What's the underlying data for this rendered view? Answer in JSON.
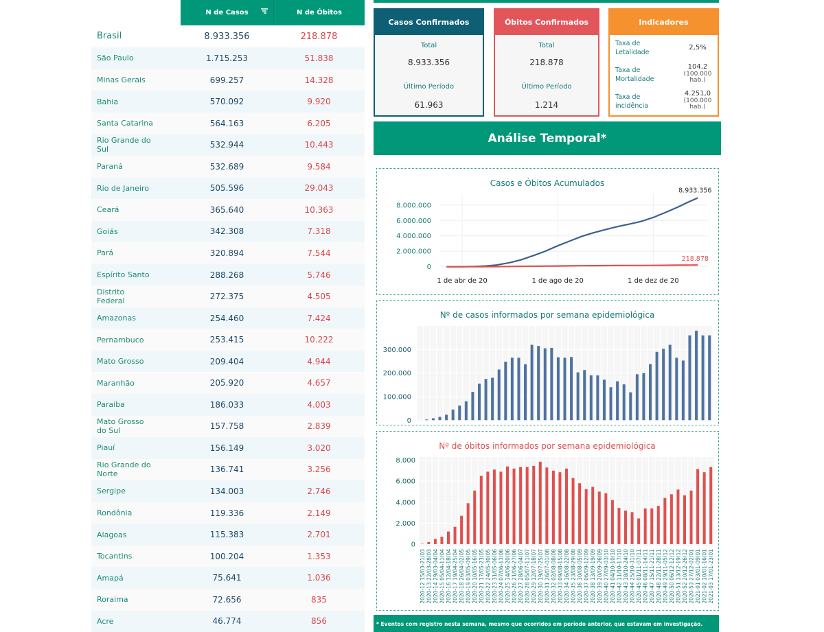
{
  "table": {
    "header": [
      "N de Casos",
      "N de Óbitos"
    ],
    "rows": [
      [
        "Brasil",
        "8.933.356",
        "218.878"
      ],
      [
        "São Paulo",
        "1.715.253",
        "51.838"
      ],
      [
        "Minas Gerais",
        "699.257",
        "14.328"
      ],
      [
        "Bahia",
        "570.092",
        "9.920"
      ],
      [
        "Santa Catarina",
        "564.163",
        "6.205"
      ],
      [
        "Rio Grande do Sul",
        "532.944",
        "10.443"
      ],
      [
        "Paraná",
        "532.689",
        "9.584"
      ],
      [
        "Rio de Janeiro",
        "505.596",
        "29.043"
      ],
      [
        "Ceará",
        "365.640",
        "10.363"
      ],
      [
        "Goiás",
        "342.308",
        "7.318"
      ],
      [
        "Pará",
        "320.894",
        "7.544"
      ],
      [
        "Espírito Santo",
        "288.268",
        "5.746"
      ],
      [
        "Distrito Federal",
        "272.375",
        "4.505"
      ],
      [
        "Amazonas",
        "254.460",
        "7.424"
      ],
      [
        "Pernambuco",
        "253.415",
        "10.222"
      ],
      [
        "Mato Grosso",
        "209.404",
        "4.944"
      ],
      [
        "Maranhão",
        "205.920",
        "4.657"
      ],
      [
        "Paraíba",
        "186.033",
        "4.003"
      ],
      [
        "Mato Grosso do Sul",
        "157.758",
        "2.839"
      ],
      [
        "Piauí",
        "156.149",
        "3.020"
      ],
      [
        "Rio Grande do Norte",
        "136.741",
        "3.256"
      ],
      [
        "Sergipe",
        "134.003",
        "2.746"
      ],
      [
        "Rondônia",
        "119.336",
        "2.149"
      ],
      [
        "Alagoas",
        "115.383",
        "2.701"
      ],
      [
        "Tocantins",
        "100.204",
        "1.353"
      ],
      [
        "Amapá",
        "75.641",
        "1.036"
      ],
      [
        "Roraima",
        "72.656",
        "835"
      ],
      [
        "Acre",
        "46.774",
        "856"
      ]
    ]
  },
  "cards": [
    {
      "title": "Casos Confirmados",
      "color": "#0e5f74",
      "items": [
        {
          "label": "Total",
          "value": "8.933.356"
        },
        {
          "label": "Último Período",
          "value": "61.963"
        }
      ]
    },
    {
      "title": "Óbitos Confirmados",
      "color": "#e2565b",
      "items": [
        {
          "label": "Total",
          "value": "218.878"
        },
        {
          "label": "Último Período",
          "value": "1.214"
        }
      ]
    }
  ],
  "indicators": {
    "title": "Indicadores",
    "color": "#f5912e",
    "items": [
      {
        "label": "Taxa de Letalidade",
        "value": "2,5%"
      },
      {
        "label": "Taxa de Mortalidade",
        "value": "104,2",
        "unit": "(100.000 hab.)"
      },
      {
        "label": "Taxa de incidência",
        "value": "4.251,0",
        "unit": "(100.000 hab.)"
      }
    ]
  },
  "section_title": "Análise Temporal*",
  "footnote": "* Eventos com registro nesta semana, mesmo que ocorridos em período anterior, que estavam em investigação.",
  "chart_data": [
    {
      "type": "line",
      "title": "Casos e Óbitos Acumulados",
      "title_color": "#157a78",
      "x": [
        "2020-03-12",
        "2020-04-01",
        "2020-04-15",
        "2020-05-01",
        "2020-05-15",
        "2020-06-01",
        "2020-06-15",
        "2020-07-01",
        "2020-07-15",
        "2020-08-01",
        "2020-08-15",
        "2020-09-01",
        "2020-09-15",
        "2020-10-01",
        "2020-10-15",
        "2020-11-01",
        "2020-11-15",
        "2020-12-01",
        "2020-12-15",
        "2021-01-01",
        "2021-01-15",
        "2021-01-27"
      ],
      "series": [
        {
          "color": "#3d5f8e",
          "end_label": "8.933.356",
          "values": [
            77,
            6836,
            28320,
            91589,
            218223,
            526447,
            888271,
            1448753,
            1966748,
            2707877,
            3275520,
            3950931,
            4382263,
            4810935,
            5169386,
            5545705,
            5863093,
            6386787,
            6970034,
            7716405,
            8393492,
            8933356
          ]
        },
        {
          "color": "#e0504f",
          "end_label": "218.878",
          "values": [
            3,
            241,
            1924,
            6329,
            14817,
            29937,
            43959,
            60632,
            75366,
            92475,
            105463,
            123780,
            133119,
            143952,
            152460,
            160253,
            165658,
            173817,
            182799,
            196018,
            208246,
            218878
          ]
        }
      ],
      "xlim": [
        "2020-03-03",
        "2021-02-08"
      ],
      "xticks": [
        {
          "value": "2020-04-01",
          "label": "1 de abr de 20"
        },
        {
          "value": "2020-08-01",
          "label": "1 de ago de 20"
        },
        {
          "value": "2020-12-01",
          "label": "1 de dez de 20"
        }
      ],
      "ylim": [
        -300000,
        9500000
      ],
      "yticks": [
        0,
        {
          "value": 2000000,
          "label": "2.000.000"
        },
        {
          "value": 4000000,
          "label": "4.000.000"
        },
        {
          "value": 6000000,
          "label": "6.000.000"
        },
        {
          "value": 8000000,
          "label": "8.000.000"
        }
      ],
      "grid": true
    },
    {
      "type": "bar",
      "title": "Nº de casos informados por semana epidemiológica",
      "title_color": "#157a78",
      "color": "#4e72a0",
      "values": [
        100,
        3000,
        8000,
        14000,
        23000,
        45000,
        62000,
        80000,
        120000,
        155000,
        175000,
        180000,
        215000,
        248000,
        265000,
        265000,
        237000,
        320000,
        315000,
        305000,
        307000,
        267000,
        265000,
        268000,
        203000,
        213000,
        190000,
        190000,
        172000,
        140000,
        165000,
        152000,
        118000,
        195000,
        200000,
        238000,
        290000,
        303000,
        320000,
        265000,
        253000,
        360000,
        380000,
        360000,
        360000
      ],
      "ylim": [
        -5000,
        400000
      ],
      "yticks": [
        0,
        {
          "value": 100000,
          "label": "100.000"
        },
        {
          "value": 200000,
          "label": "200.000"
        },
        {
          "value": 300000,
          "label": "300.000"
        }
      ],
      "grid": true
    },
    {
      "type": "bar",
      "title": "Nº de óbitos informados por semana epidemiológica",
      "title_color": "#e0504f",
      "color": "#e0504f",
      "categories": [
        "2020-12 15/03-21/03",
        "2020-13 22/03-28/03",
        "2020-14 29/03-04/04",
        "2020-15 05/04-11/04",
        "2020-16 12/04-18/04",
        "2020-17 19/04-25/04",
        "2020-18 26/04-02/05",
        "2020-19 03/05-09/05",
        "2020-20 10/05-16/05",
        "2020-21 17/05-23/05",
        "2020-22 24/05-30/05",
        "2020-23 31/05-06/06",
        "2020-24 07/06-13/06",
        "2020-25 14/06-20/06",
        "2020-26 21/06-27/06",
        "2020-27 28/06-04/07",
        "2020-28 05/07-11/07",
        "2020-29 12/07-18/07",
        "2020-30 19/07-25/07",
        "2020-31 26/07-01/08",
        "2020-32 02/08-08/08",
        "2020-33 09/08-15/08",
        "2020-34 16/08-22/08",
        "2020-35 23/08-29/08",
        "2020-36 30/08-05/09",
        "2020-37 06/09-12/09",
        "2020-38 13/09-19/09",
        "2020-39 20/09-26/09",
        "2020-40 27/09-03/10",
        "2020-41 04/10-10/10",
        "2020-42 11/10-17/10",
        "2020-43 18/10-24/10",
        "2020-44 25/10-31/10",
        "2020-45 01/11-07/11",
        "2020-46 08/11-14/11",
        "2020-47 15/11-21/11",
        "2020-48 22/11-28/11",
        "2020-49 29/11-05/12",
        "2020-50 06/12-12/12",
        "2020-51 13/12-19/12",
        "2020-52 20/12-26/12",
        "2020-53 27/12-02/01",
        "2021-01 03/01-09/01",
        "2021-02 10/01-16/01",
        "2021-03 17/01-23/01"
      ],
      "values": [
        30,
        200,
        500,
        700,
        1200,
        1650,
        2700,
        3900,
        5100,
        6500,
        6900,
        7100,
        6900,
        7400,
        7200,
        7350,
        7350,
        7450,
        7850,
        7300,
        7000,
        6850,
        7200,
        6300,
        5800,
        5250,
        5450,
        5000,
        4850,
        4200,
        3450,
        3200,
        3050,
        2450,
        3400,
        3400,
        3650,
        4400,
        4750,
        5200,
        4650,
        5100,
        7150,
        6850,
        7350
      ],
      "ylim": [
        -200,
        8300
      ],
      "yticks": [
        0,
        {
          "value": 2000,
          "label": "2.000"
        },
        {
          "value": 4000,
          "label": "4.000"
        },
        {
          "value": 6000,
          "label": "6.000"
        },
        {
          "value": 8000,
          "label": "8.000"
        }
      ],
      "grid": true
    }
  ]
}
